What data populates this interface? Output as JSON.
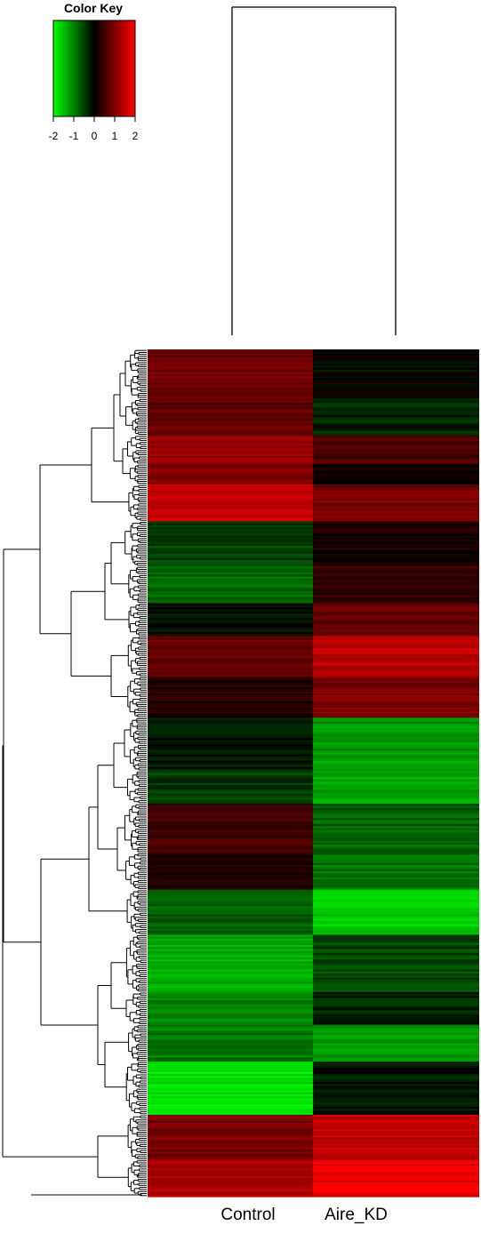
{
  "chart_data": {
    "type": "heatmap",
    "title": "",
    "color_key": {
      "title": "Color Key",
      "ticks": [
        "-2",
        "-1",
        "0",
        "1",
        "2"
      ],
      "range": [
        -2,
        2
      ],
      "colors": {
        "low": "#00ff00",
        "mid": "#000000",
        "high": "#ff0000"
      }
    },
    "columns": [
      "Control",
      "Aire_KD"
    ],
    "column_dendrogram": true,
    "row_dendrogram": true,
    "row_blocks": [
      {
        "rows": 24,
        "control": 0.9,
        "aire_kd": 0.0
      },
      {
        "rows": 18,
        "control": 0.75,
        "aire_kd": -0.3
      },
      {
        "rows": 14,
        "control": 1.25,
        "aire_kd": 0.55
      },
      {
        "rows": 10,
        "control": 1.05,
        "aire_kd": 0.2
      },
      {
        "rows": 18,
        "control": 1.6,
        "aire_kd": 0.95
      },
      {
        "rows": 22,
        "control": -0.5,
        "aire_kd": 0.15
      },
      {
        "rows": 18,
        "control": -0.8,
        "aire_kd": 0.45
      },
      {
        "rows": 16,
        "control": -0.1,
        "aire_kd": 0.75
      },
      {
        "rows": 20,
        "control": 0.8,
        "aire_kd": 1.45
      },
      {
        "rows": 20,
        "control": 0.3,
        "aire_kd": 1.0
      },
      {
        "rows": 26,
        "control": -0.15,
        "aire_kd": -1.2
      },
      {
        "rows": 16,
        "control": -0.45,
        "aire_kd": -1.3
      },
      {
        "rows": 24,
        "control": 0.55,
        "aire_kd": -0.75
      },
      {
        "rows": 18,
        "control": 0.2,
        "aire_kd": -0.9
      },
      {
        "rows": 22,
        "control": -0.7,
        "aire_kd": -1.6
      },
      {
        "rows": 28,
        "control": -1.35,
        "aire_kd": -0.55
      },
      {
        "rows": 16,
        "control": -1.05,
        "aire_kd": -0.3
      },
      {
        "rows": 18,
        "control": -0.95,
        "aire_kd": -1.2
      },
      {
        "rows": 26,
        "control": -1.75,
        "aire_kd": -0.15
      },
      {
        "rows": 22,
        "control": 0.95,
        "aire_kd": 1.5
      },
      {
        "rows": 18,
        "control": 1.3,
        "aire_kd": 1.85
      }
    ]
  }
}
